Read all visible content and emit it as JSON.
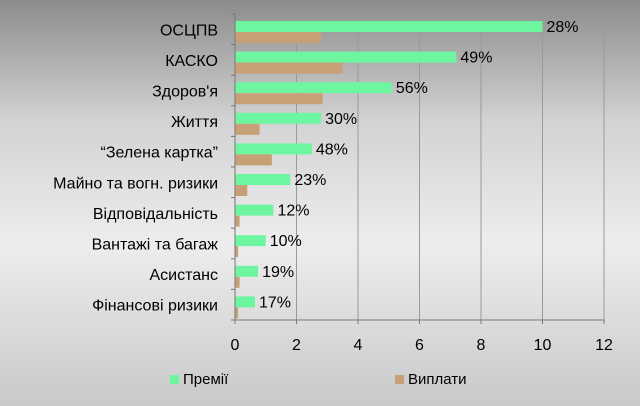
{
  "chart_data": {
    "type": "bar",
    "orientation": "horizontal",
    "categories": [
      "ОСЦПВ",
      "КАСКО",
      "Здоров'я",
      "Життя",
      "“Зелена картка”",
      "Майно та вогн. ризики",
      "Відповідальність",
      "Вантажі та багаж",
      "Асистанс",
      "Фінансові ризики"
    ],
    "series": [
      {
        "name": "Премії",
        "color": "#6ef5a0",
        "values": [
          10.0,
          7.2,
          5.1,
          2.8,
          2.5,
          1.8,
          1.25,
          1.0,
          0.75,
          0.65
        ]
      },
      {
        "name": "Виплати",
        "color": "#c8a078",
        "values": [
          2.8,
          3.5,
          2.85,
          0.8,
          1.2,
          0.4,
          0.15,
          0.1,
          0.15,
          0.1
        ]
      }
    ],
    "data_labels": [
      "28%",
      "49%",
      "56%",
      "30%",
      "48%",
      "23%",
      "12%",
      "10%",
      "19%",
      "17%"
    ],
    "x_ticks": [
      "0",
      "2",
      "4",
      "6",
      "8",
      "10",
      "12"
    ],
    "xlim": [
      0,
      12
    ],
    "grid": true,
    "legend_position": "bottom"
  }
}
